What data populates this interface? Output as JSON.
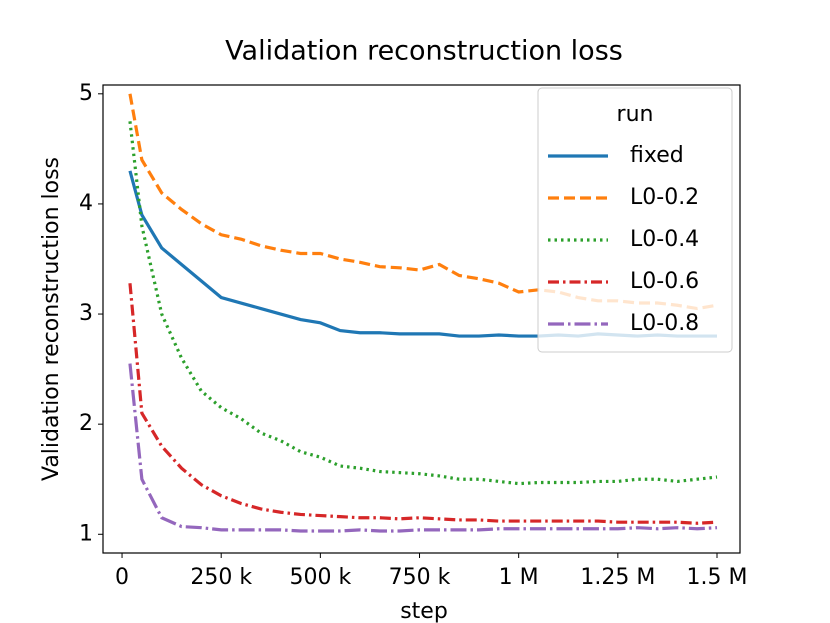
{
  "chart_data": {
    "type": "line",
    "title": "Validation reconstruction loss",
    "xlabel": "step",
    "ylabel": "Validation reconstruction loss",
    "legend_title": "run",
    "legend_position": "upper right",
    "x": [
      20000,
      50000,
      100000,
      150000,
      200000,
      250000,
      300000,
      350000,
      400000,
      450000,
      500000,
      550000,
      600000,
      650000,
      700000,
      750000,
      800000,
      850000,
      900000,
      950000,
      1000000,
      1050000,
      1100000,
      1150000,
      1200000,
      1250000,
      1300000,
      1350000,
      1400000,
      1450000,
      1500000
    ],
    "series": [
      {
        "name": "fixed",
        "color": "#1f77b4",
        "linestyle": "solid",
        "values": [
          4.3,
          3.9,
          3.6,
          3.45,
          3.3,
          3.15,
          3.1,
          3.05,
          3.0,
          2.95,
          2.92,
          2.85,
          2.83,
          2.83,
          2.82,
          2.82,
          2.82,
          2.8,
          2.8,
          2.81,
          2.8,
          2.8,
          2.81,
          2.8,
          2.82,
          2.81,
          2.8,
          2.81,
          2.8,
          2.8,
          2.8
        ]
      },
      {
        "name": "L0-0.2",
        "color": "#ff7f0e",
        "linestyle": "dashed",
        "values": [
          5.0,
          4.4,
          4.1,
          3.95,
          3.82,
          3.72,
          3.68,
          3.62,
          3.58,
          3.55,
          3.55,
          3.5,
          3.47,
          3.43,
          3.42,
          3.4,
          3.45,
          3.35,
          3.32,
          3.28,
          3.2,
          3.22,
          3.2,
          3.15,
          3.12,
          3.12,
          3.1,
          3.1,
          3.08,
          3.05,
          3.08
        ]
      },
      {
        "name": "L0-0.4",
        "color": "#2ca02c",
        "linestyle": "dotted",
        "values": [
          4.75,
          3.8,
          3.0,
          2.6,
          2.3,
          2.15,
          2.05,
          1.92,
          1.85,
          1.75,
          1.7,
          1.62,
          1.6,
          1.57,
          1.56,
          1.55,
          1.53,
          1.5,
          1.5,
          1.48,
          1.46,
          1.47,
          1.47,
          1.47,
          1.48,
          1.48,
          1.5,
          1.5,
          1.48,
          1.5,
          1.52
        ]
      },
      {
        "name": "L0-0.6",
        "color": "#d62728",
        "linestyle": "dashdot",
        "values": [
          3.28,
          2.1,
          1.8,
          1.6,
          1.45,
          1.35,
          1.28,
          1.23,
          1.2,
          1.18,
          1.17,
          1.16,
          1.15,
          1.15,
          1.14,
          1.15,
          1.14,
          1.13,
          1.13,
          1.12,
          1.12,
          1.12,
          1.12,
          1.12,
          1.12,
          1.11,
          1.11,
          1.11,
          1.11,
          1.1,
          1.11
        ]
      },
      {
        "name": "L0-0.8",
        "color": "#9467bd",
        "linestyle": "longdashdot",
        "values": [
          2.55,
          1.5,
          1.15,
          1.07,
          1.06,
          1.04,
          1.04,
          1.04,
          1.04,
          1.03,
          1.03,
          1.03,
          1.04,
          1.03,
          1.03,
          1.04,
          1.04,
          1.04,
          1.04,
          1.05,
          1.05,
          1.05,
          1.05,
          1.05,
          1.05,
          1.05,
          1.06,
          1.05,
          1.06,
          1.05,
          1.06
        ]
      }
    ],
    "xlim": [
      -48000,
      1558000
    ],
    "xticks": [
      0,
      {
        "value": 250000,
        "label": "250 k"
      },
      {
        "value": 500000,
        "label": "500 k"
      },
      {
        "value": 750000,
        "label": "750 k"
      },
      {
        "value": 1000000,
        "label": "1 M"
      },
      {
        "value": 1250000,
        "label": "1.25 M"
      },
      {
        "value": 1500000,
        "label": "1.5 M"
      }
    ],
    "ylim": [
      0.83,
      5.08
    ],
    "yticks": [
      1,
      2,
      3,
      4,
      5
    ],
    "grid": false
  }
}
